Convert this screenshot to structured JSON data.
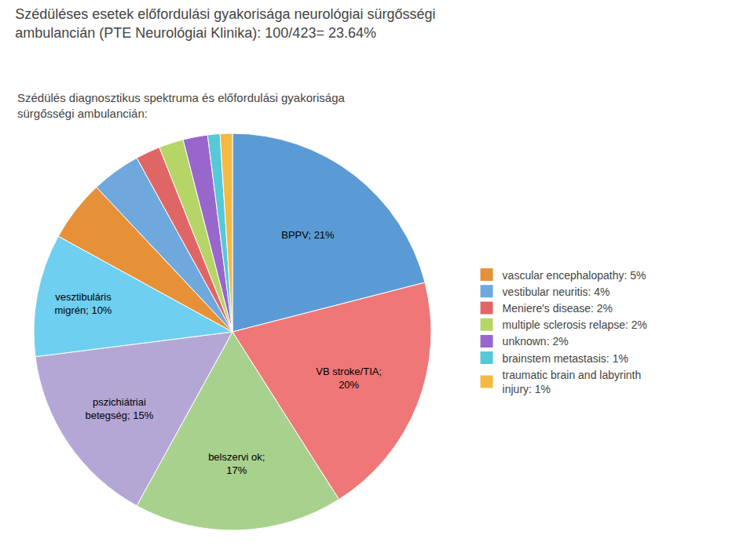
{
  "chart_data": {
    "type": "pie",
    "title": "Szédüléses esetek előfordulási gyakorisága neurológiai sürgősségi\nambulancián (PTE Neurológiai Klinika): 100/423= 23.64%",
    "subtitle": "Szédülés diagnosztikus spektruma és előfordulási gyakorisága\nsürgősségi ambulancián:",
    "categories": [
      null,
      null,
      null,
      null,
      null,
      "vascular encephalopathy: 5%",
      "vestibular neuritis: 4%",
      "Meniere's disease: 2%",
      "multiple sclerosis relapse: 2%",
      "unknown: 2%",
      "brainstem metastasis: 1%",
      "traumatic brain and labyrinth\ninjury: 1%"
    ],
    "values": [
      21,
      20,
      17,
      15,
      10,
      5,
      4,
      2,
      2,
      2,
      1,
      1
    ],
    "value_labels": [
      "BPPV; 21%",
      "VB stroke/TIA;\n20%",
      "belszervi ok;\n17%",
      "pszichiátriai\nbetegség; 15%",
      "vesztibuláris\nmigrén; 10%",
      null,
      null,
      null,
      null,
      null,
      null,
      null
    ],
    "colors": [
      "#5B9BD5",
      "#EF7777",
      "#A9D18E",
      "#B4A7D6",
      "#6ECFF0",
      "#E69138",
      "#6FA8DC",
      "#E06666",
      "#B5D567",
      "#9966CC",
      "#56C8D8",
      "#F4B942"
    ],
    "legend": "right"
  }
}
